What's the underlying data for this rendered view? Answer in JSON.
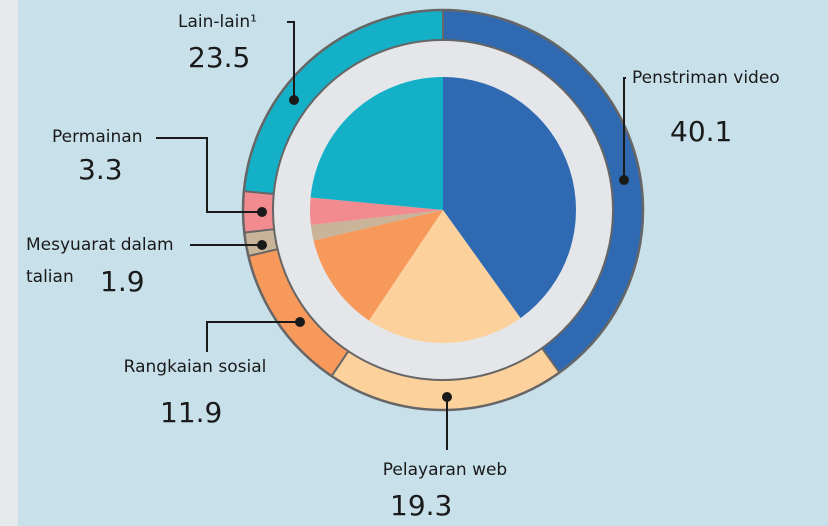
{
  "chart_data": {
    "type": "pie",
    "categories": [
      "Penstriman video",
      "Pelayaran web",
      "Rangkaian sosial",
      "Mesyuarat dalam talian",
      "Permainan",
      "Lain-lain¹"
    ],
    "values": [
      40.1,
      19.3,
      11.9,
      1.9,
      3.3,
      23.5
    ],
    "colors": [
      "#2e69b2",
      "#fdd19c",
      "#f7995a",
      "#c9b399",
      "#f28b90",
      "#13b0c7"
    ]
  }
}
